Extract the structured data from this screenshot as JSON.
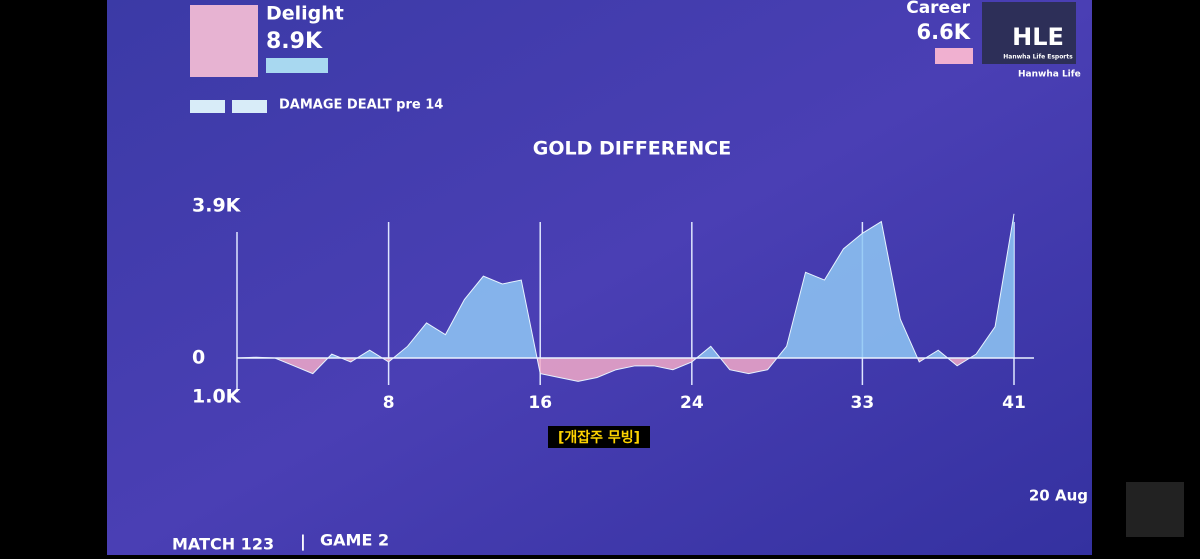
{
  "header": {
    "player": "Delight",
    "player_value": "8.9K",
    "metric": "DAMAGE DEALT pre 14",
    "career_label": "Career",
    "career_value": "6.6K",
    "team": "HLE",
    "team_full": "Hanwha Life Esports",
    "sponsor": "Hanwha Life"
  },
  "chart_data": {
    "type": "area",
    "title": "GOLD DIFFERENCE",
    "x": [
      0,
      1,
      2,
      3,
      4,
      5,
      6,
      7,
      8,
      9,
      10,
      11,
      12,
      13,
      14,
      15,
      16,
      17,
      18,
      19,
      20,
      21,
      22,
      23,
      24,
      25,
      26,
      27,
      28,
      29,
      30,
      31,
      32,
      33,
      34,
      35,
      36,
      37,
      38,
      39,
      40,
      41
    ],
    "series": [
      {
        "name": "Gold difference",
        "color": "#8fc8f5",
        "negative_color": "#f2a9c8",
        "values": [
          0,
          20,
          0,
          -200,
          -400,
          100,
          -100,
          200,
          -100,
          300,
          900,
          600,
          1500,
          2100,
          1900,
          2000,
          -400,
          -500,
          -600,
          -500,
          -300,
          -200,
          -200,
          -300,
          -100,
          300,
          -300,
          -400,
          -300,
          300,
          2200,
          2000,
          2800,
          3200,
          3500,
          1000,
          -100,
          200,
          -200,
          100,
          800,
          3700
        ]
      }
    ],
    "xlim": [
      0,
      41
    ],
    "xticks": [
      8,
      16,
      24,
      33,
      41
    ],
    "ylim": [
      -1000,
      3900
    ],
    "yticks": [
      {
        "value": 3900,
        "label": "3.9K"
      },
      0,
      {
        "value": -1000,
        "label": "1.0K"
      }
    ]
  },
  "caption": "[개잡주 무빙]",
  "footer": {
    "date": "20 Aug",
    "match": "MATCH 123",
    "game": "GAME 2"
  }
}
